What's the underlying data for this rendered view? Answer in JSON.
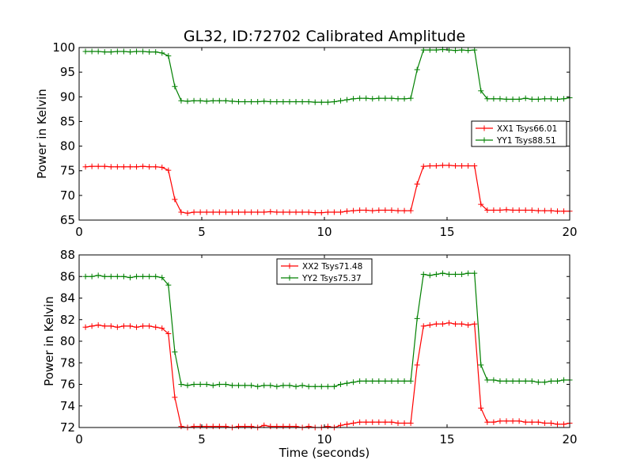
{
  "chart_data": [
    {
      "type": "line",
      "title": "GL32, ID:72702 Calibrated Amplitude",
      "xlabel": "",
      "ylabel": "Power in Kelvin",
      "xlim": [
        0,
        20
      ],
      "ylim": [
        65,
        100
      ],
      "xticks": [
        "0",
        "5",
        "10",
        "15",
        "20"
      ],
      "yticks": [
        "65",
        "70",
        "75",
        "80",
        "85",
        "90",
        "95",
        "100"
      ],
      "xtick_values": [
        0,
        5,
        10,
        15,
        20
      ],
      "ytick_values": [
        65,
        70,
        75,
        80,
        85,
        90,
        95,
        100
      ],
      "grid": false,
      "legend_position": "center-right",
      "x": [
        0.26,
        0.52,
        0.78,
        1.04,
        1.3,
        1.56,
        1.82,
        2.08,
        2.34,
        2.6,
        2.86,
        3.12,
        3.38,
        3.64,
        3.9,
        4.16,
        4.42,
        4.68,
        4.94,
        5.2,
        5.46,
        5.72,
        5.98,
        6.24,
        6.5,
        6.76,
        7.02,
        7.28,
        7.54,
        7.8,
        8.06,
        8.32,
        8.58,
        8.84,
        9.1,
        9.36,
        9.62,
        9.88,
        10.14,
        10.4,
        10.66,
        10.92,
        11.18,
        11.44,
        11.7,
        11.96,
        12.22,
        12.48,
        12.74,
        13.0,
        13.26,
        13.52,
        13.78,
        14.04,
        14.3,
        14.56,
        14.82,
        15.08,
        15.34,
        15.6,
        15.86,
        16.12,
        16.38,
        16.64,
        16.9,
        17.16,
        17.42,
        17.68,
        17.94,
        18.2,
        18.46,
        18.72,
        18.98,
        19.24,
        19.5,
        19.76,
        20.0
      ],
      "series": [
        {
          "name": "XX1 Tsys66.01",
          "color": "#ff0000",
          "values": [
            75.8,
            75.9,
            75.9,
            75.9,
            75.8,
            75.8,
            75.8,
            75.8,
            75.8,
            75.9,
            75.8,
            75.8,
            75.7,
            75.1,
            69.2,
            66.6,
            66.4,
            66.6,
            66.6,
            66.6,
            66.6,
            66.6,
            66.6,
            66.6,
            66.6,
            66.6,
            66.6,
            66.6,
            66.6,
            66.7,
            66.6,
            66.6,
            66.6,
            66.6,
            66.6,
            66.6,
            66.5,
            66.5,
            66.6,
            66.6,
            66.6,
            66.8,
            66.9,
            67.0,
            67.0,
            66.9,
            67.0,
            67.0,
            67.0,
            66.9,
            66.9,
            66.9,
            72.3,
            75.9,
            76.0,
            76.0,
            76.1,
            76.1,
            76.0,
            76.0,
            76.0,
            76.0,
            68.2,
            67.0,
            67.0,
            67.0,
            67.1,
            67.0,
            67.0,
            67.0,
            67.0,
            66.9,
            66.9,
            66.9,
            66.8,
            66.8,
            66.8
          ]
        },
        {
          "name": "YY1 Tsys88.51",
          "color": "#008000",
          "values": [
            99.2,
            99.2,
            99.2,
            99.1,
            99.1,
            99.2,
            99.2,
            99.1,
            99.2,
            99.2,
            99.1,
            99.1,
            98.9,
            98.3,
            92.1,
            89.2,
            89.1,
            89.2,
            89.2,
            89.1,
            89.2,
            89.2,
            89.2,
            89.1,
            89.0,
            89.0,
            89.0,
            89.0,
            89.1,
            89.0,
            89.0,
            89.0,
            89.0,
            89.0,
            89.0,
            89.0,
            88.9,
            88.9,
            88.9,
            89.0,
            89.2,
            89.4,
            89.6,
            89.7,
            89.7,
            89.6,
            89.7,
            89.7,
            89.7,
            89.6,
            89.6,
            89.7,
            95.5,
            99.5,
            99.5,
            99.5,
            99.6,
            99.5,
            99.4,
            99.5,
            99.4,
            99.5,
            91.2,
            89.6,
            89.6,
            89.6,
            89.5,
            89.5,
            89.5,
            89.7,
            89.5,
            89.5,
            89.6,
            89.6,
            89.5,
            89.6,
            89.8
          ]
        }
      ]
    },
    {
      "type": "line",
      "title": "",
      "xlabel": "Time (seconds)",
      "ylabel": "Power in Kelvin",
      "xlim": [
        0,
        20
      ],
      "ylim": [
        72,
        88
      ],
      "xticks": [
        "0",
        "5",
        "10",
        "15",
        "20"
      ],
      "yticks": [
        "72",
        "74",
        "76",
        "78",
        "80",
        "82",
        "84",
        "86",
        "88"
      ],
      "xtick_values": [
        0,
        5,
        10,
        15,
        20
      ],
      "ytick_values": [
        72,
        74,
        76,
        78,
        80,
        82,
        84,
        86,
        88
      ],
      "grid": false,
      "legend_position": "top-center",
      "x": [
        0.26,
        0.52,
        0.78,
        1.04,
        1.3,
        1.56,
        1.82,
        2.08,
        2.34,
        2.6,
        2.86,
        3.12,
        3.38,
        3.64,
        3.9,
        4.16,
        4.42,
        4.68,
        4.94,
        5.2,
        5.46,
        5.72,
        5.98,
        6.24,
        6.5,
        6.76,
        7.02,
        7.28,
        7.54,
        7.8,
        8.06,
        8.32,
        8.58,
        8.84,
        9.1,
        9.36,
        9.62,
        9.88,
        10.14,
        10.4,
        10.66,
        10.92,
        11.18,
        11.44,
        11.7,
        11.96,
        12.22,
        12.48,
        12.74,
        13.0,
        13.26,
        13.52,
        13.78,
        14.04,
        14.3,
        14.56,
        14.82,
        15.08,
        15.34,
        15.6,
        15.86,
        16.12,
        16.38,
        16.64,
        16.9,
        17.16,
        17.42,
        17.68,
        17.94,
        18.2,
        18.46,
        18.72,
        18.98,
        19.24,
        19.5,
        19.76,
        20.0
      ],
      "series": [
        {
          "name": "XX2 Tsys71.48",
          "color": "#ff0000",
          "values": [
            81.3,
            81.4,
            81.5,
            81.4,
            81.4,
            81.3,
            81.4,
            81.4,
            81.3,
            81.4,
            81.4,
            81.3,
            81.2,
            80.7,
            74.8,
            72.1,
            72.0,
            72.1,
            72.1,
            72.1,
            72.1,
            72.1,
            72.1,
            72.0,
            72.1,
            72.1,
            72.1,
            72.0,
            72.2,
            72.1,
            72.1,
            72.1,
            72.1,
            72.1,
            72.0,
            72.1,
            72.0,
            72.0,
            72.1,
            72.0,
            72.2,
            72.3,
            72.4,
            72.5,
            72.5,
            72.5,
            72.5,
            72.5,
            72.5,
            72.4,
            72.4,
            72.4,
            77.8,
            81.4,
            81.5,
            81.6,
            81.6,
            81.7,
            81.6,
            81.6,
            81.5,
            81.6,
            73.8,
            72.5,
            72.5,
            72.6,
            72.6,
            72.6,
            72.6,
            72.5,
            72.5,
            72.5,
            72.4,
            72.4,
            72.3,
            72.3,
            72.4
          ]
        },
        {
          "name": "YY2 Tsys75.37",
          "color": "#008000",
          "values": [
            86.0,
            86.0,
            86.1,
            86.0,
            86.0,
            86.0,
            86.0,
            85.9,
            86.0,
            86.0,
            86.0,
            86.0,
            85.9,
            85.2,
            79.0,
            76.0,
            75.9,
            76.0,
            76.0,
            76.0,
            75.9,
            76.0,
            76.0,
            75.9,
            75.9,
            75.9,
            75.9,
            75.8,
            75.9,
            75.9,
            75.8,
            75.9,
            75.9,
            75.8,
            75.9,
            75.8,
            75.8,
            75.8,
            75.8,
            75.8,
            76.0,
            76.1,
            76.2,
            76.3,
            76.3,
            76.3,
            76.3,
            76.3,
            76.3,
            76.3,
            76.3,
            76.3,
            82.1,
            86.2,
            86.1,
            86.2,
            86.3,
            86.2,
            86.2,
            86.2,
            86.3,
            86.3,
            77.8,
            76.4,
            76.4,
            76.3,
            76.3,
            76.3,
            76.3,
            76.3,
            76.3,
            76.2,
            76.2,
            76.3,
            76.3,
            76.4,
            76.4
          ]
        }
      ]
    }
  ]
}
